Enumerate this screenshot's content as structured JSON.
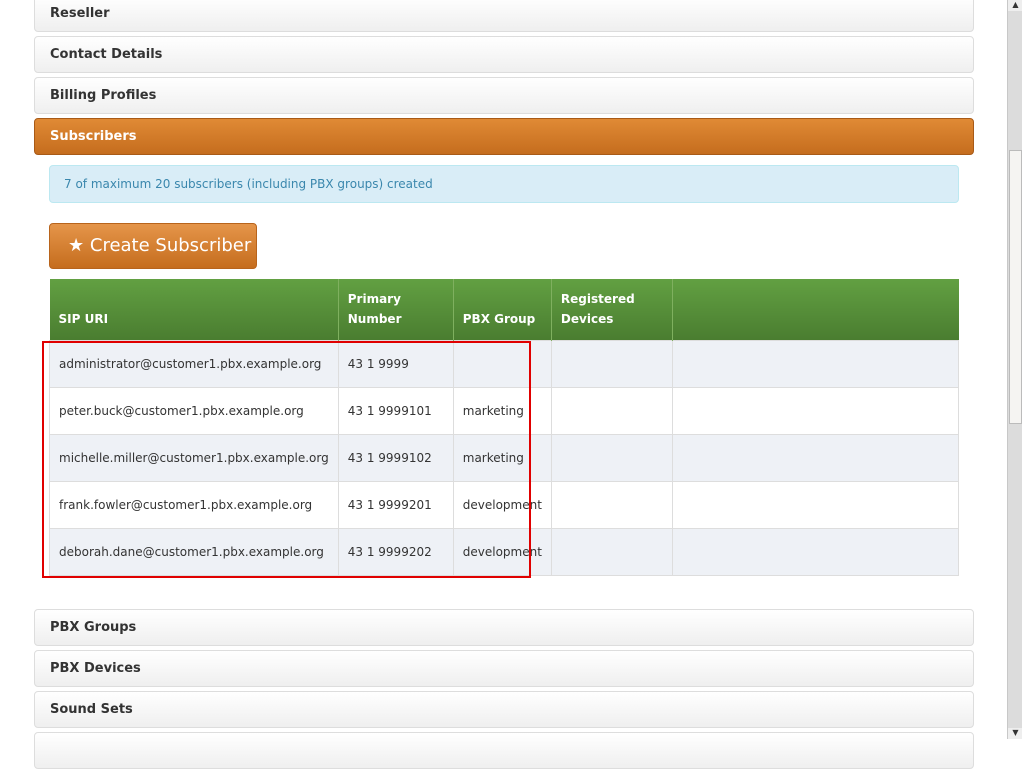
{
  "sections_top": [
    "Reseller",
    "Contact Details",
    "Billing Profiles"
  ],
  "active_section": "Subscribers",
  "info_text": "7 of maximum 20 subscribers (including PBX groups) created",
  "create_button": "Create Subscriber",
  "columns": [
    "SIP URI",
    "Primary Number",
    "PBX Group",
    "Registered Devices",
    ""
  ],
  "rows": [
    [
      "administrator@customer1.pbx.example.org",
      "43 1 9999",
      "",
      ""
    ],
    [
      "peter.buck@customer1.pbx.example.org",
      "43 1 9999101",
      "marketing",
      ""
    ],
    [
      "michelle.miller@customer1.pbx.example.org",
      "43 1 9999102",
      "marketing",
      ""
    ],
    [
      "frank.fowler@customer1.pbx.example.org",
      "43 1 9999201",
      "development",
      ""
    ],
    [
      "deborah.dane@customer1.pbx.example.org",
      "43 1 9999202",
      "development",
      ""
    ]
  ],
  "sections_bottom": [
    "PBX Groups",
    "PBX Devices",
    "Sound Sets"
  ]
}
